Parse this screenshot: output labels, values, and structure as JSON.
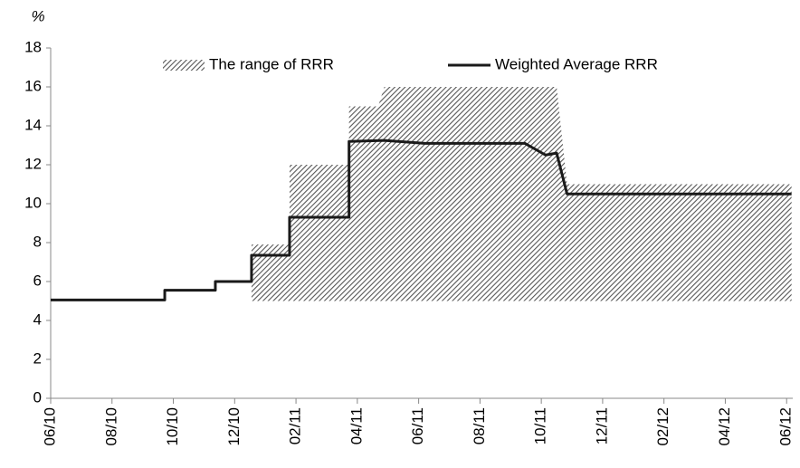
{
  "chart_data": {
    "type": "line",
    "y_axis_label": "%",
    "xlim": [
      0,
      24.2
    ],
    "xticks": [
      {
        "value": 0,
        "label": "06/10"
      },
      {
        "value": 2,
        "label": "08/10"
      },
      {
        "value": 4,
        "label": "10/10"
      },
      {
        "value": 6,
        "label": "12/10"
      },
      {
        "value": 8,
        "label": "02/11"
      },
      {
        "value": 10,
        "label": "04/11"
      },
      {
        "value": 12,
        "label": "06/11"
      },
      {
        "value": 14,
        "label": "08/11"
      },
      {
        "value": 16,
        "label": "10/11"
      },
      {
        "value": 18,
        "label": "12/11"
      },
      {
        "value": 20,
        "label": "02/12"
      },
      {
        "value": 22,
        "label": "04/12"
      },
      {
        "value": 24,
        "label": "06/12"
      }
    ],
    "ylim": [
      0,
      18
    ],
    "yticks": [
      0,
      2,
      4,
      6,
      8,
      10,
      12,
      14,
      16,
      18
    ],
    "grid": false,
    "legend": "top",
    "range": {
      "name": "The range of RRR",
      "color": "#555555",
      "x": [
        6.55,
        7.79,
        7.79,
        9.73,
        9.73,
        10.68,
        10.88,
        16.5,
        16.84,
        24.16
      ],
      "low": [
        5,
        5,
        5,
        5,
        5,
        5,
        5,
        5,
        5,
        5
      ],
      "high": [
        7.9,
        7.9,
        12,
        12,
        15,
        15,
        16,
        16,
        11,
        11
      ]
    },
    "series": [
      {
        "name": "Weighted Average RRR",
        "color": "#1a1a1a",
        "x": [
          0,
          3.72,
          3.72,
          5.37,
          5.37,
          6.55,
          6.55,
          7.79,
          7.79,
          9.73,
          9.73,
          10.88,
          12.2,
          15.46,
          16.14,
          16.5,
          16.84,
          24.16
        ],
        "values": [
          5.05,
          5.05,
          5.55,
          5.55,
          6.0,
          6.0,
          7.35,
          7.35,
          9.3,
          9.3,
          13.2,
          13.25,
          13.1,
          13.1,
          12.5,
          12.6,
          10.5,
          10.5
        ]
      }
    ]
  }
}
